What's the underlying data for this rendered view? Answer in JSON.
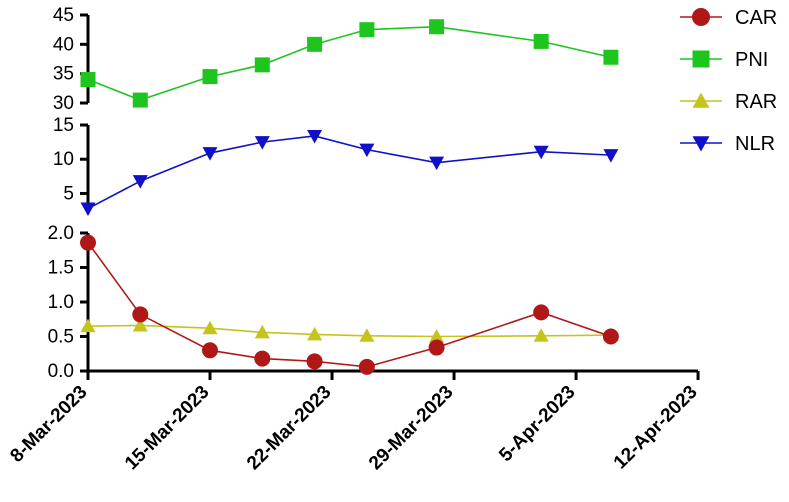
{
  "chart_data": {
    "type": "line",
    "title": "",
    "xlabel": "",
    "ylabel": "",
    "x_dates": [
      "8-Mar-2023",
      "11-Mar-2023",
      "15-Mar-2023",
      "18-Mar-2023",
      "21-Mar-2023",
      "24-Mar-2023",
      "28-Mar-2023",
      "3-Apr-2023",
      "7-Apr-2023"
    ],
    "x_day_offsets": [
      0,
      3,
      7,
      10,
      13,
      16,
      20,
      26,
      30
    ],
    "x_ticks": [
      "8-Mar-2023",
      "15-Mar-2023",
      "22-Mar-2023",
      "29-Mar-2023",
      "5-Apr-2023",
      "12-Apr-2023"
    ],
    "x_tick_offsets": [
      0,
      7,
      14,
      21,
      28,
      35
    ],
    "panels": [
      {
        "name": "top",
        "ylim": [
          30,
          45
        ],
        "yticks": [
          "30",
          "35",
          "40",
          "45"
        ],
        "ytick_values": [
          30,
          35,
          40,
          45
        ],
        "series": [
          {
            "name": "PNI",
            "color": "#1fc51f",
            "marker": "square",
            "values": [
              34.0,
              30.5,
              34.5,
              36.5,
              40.0,
              42.5,
              43.0,
              40.5,
              37.8
            ]
          }
        ]
      },
      {
        "name": "middle",
        "ylim": [
          2,
          15
        ],
        "yticks": [
          "5",
          "10",
          "15"
        ],
        "ytick_values": [
          5,
          10,
          15
        ],
        "series": [
          {
            "name": "NLR",
            "color": "#1010c8",
            "marker": "triangle-down",
            "values": [
              2.8,
              6.8,
              10.9,
              12.5,
              13.4,
              11.4,
              9.5,
              11.1,
              10.6
            ]
          }
        ]
      },
      {
        "name": "bottom",
        "ylim": [
          0,
          2
        ],
        "yticks": [
          "0.0",
          "0.5",
          "1.0",
          "1.5",
          "2.0"
        ],
        "ytick_values": [
          0,
          0.5,
          1.0,
          1.5,
          2.0
        ],
        "series": [
          {
            "name": "RAR",
            "color": "#c4c41c",
            "marker": "triangle-up",
            "values": [
              0.65,
              0.66,
              0.62,
              0.56,
              0.53,
              0.51,
              0.5,
              0.51,
              0.52
            ]
          },
          {
            "name": "CAR",
            "color": "#b01818",
            "marker": "circle",
            "values": [
              1.86,
              0.82,
              0.3,
              0.18,
              0.14,
              0.06,
              0.34,
              0.85,
              0.5
            ]
          }
        ]
      }
    ],
    "legend": [
      {
        "label": "CAR",
        "color": "#b01818",
        "marker": "circle"
      },
      {
        "label": "PNI",
        "color": "#1fc51f",
        "marker": "square"
      },
      {
        "label": "RAR",
        "color": "#c4c41c",
        "marker": "triangle-up"
      },
      {
        "label": "NLR",
        "color": "#1010c8",
        "marker": "triangle-down"
      }
    ],
    "legend_position": "top-right"
  }
}
